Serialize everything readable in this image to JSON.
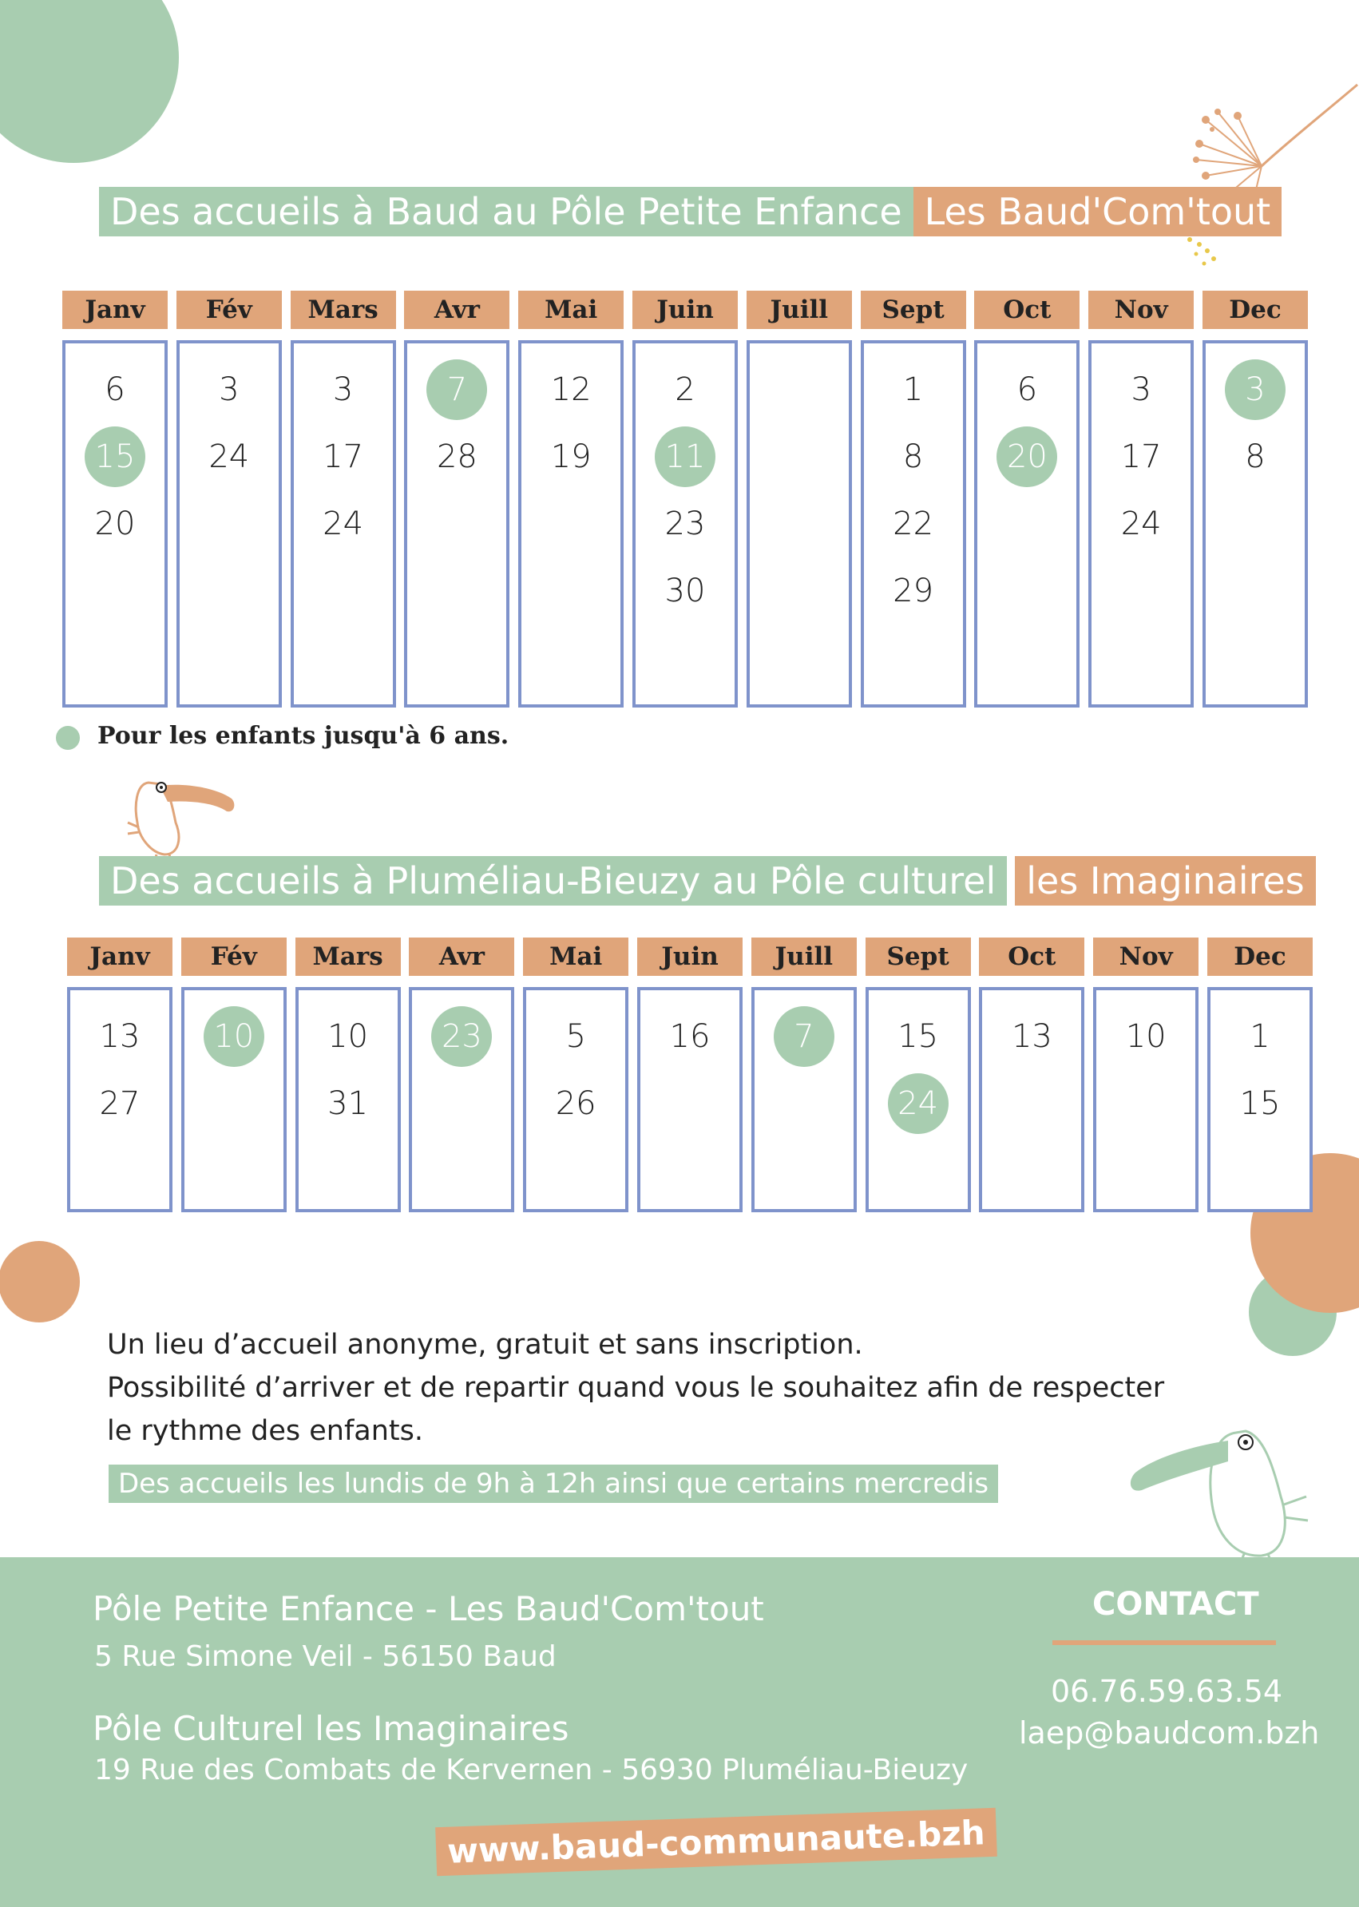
{
  "section1": {
    "title_main": "Des accueils à Baud au Pôle Petite Enfance",
    "title_accent": "Les Baud'Com'tout"
  },
  "section2": {
    "title_main": "Des accueils à Pluméliau-Bieuzy au Pôle culturel",
    "title_accent": "les Imaginaires"
  },
  "calendar1": [
    {
      "month": "Janv",
      "days": [
        {
          "d": "6"
        },
        {
          "d": "15",
          "hl": true
        },
        {
          "d": "20"
        }
      ]
    },
    {
      "month": "Fév",
      "days": [
        {
          "d": "3"
        },
        {
          "d": "24"
        }
      ]
    },
    {
      "month": "Mars",
      "days": [
        {
          "d": "3"
        },
        {
          "d": "17"
        },
        {
          "d": "24"
        }
      ]
    },
    {
      "month": "Avr",
      "days": [
        {
          "d": "7",
          "hl": true
        },
        {
          "d": "28"
        }
      ]
    },
    {
      "month": "Mai",
      "days": [
        {
          "d": "12"
        },
        {
          "d": "19"
        }
      ]
    },
    {
      "month": "Juin",
      "days": [
        {
          "d": "2"
        },
        {
          "d": "11",
          "hl": true
        },
        {
          "d": "23"
        },
        {
          "d": "30"
        }
      ]
    },
    {
      "month": "Juill",
      "days": []
    },
    {
      "month": "Sept",
      "days": [
        {
          "d": "1"
        },
        {
          "d": "8"
        },
        {
          "d": "22"
        },
        {
          "d": "29"
        }
      ]
    },
    {
      "month": "Oct",
      "days": [
        {
          "d": "6"
        },
        {
          "d": "20",
          "hl": true
        }
      ]
    },
    {
      "month": "Nov",
      "days": [
        {
          "d": "3"
        },
        {
          "d": "17"
        },
        {
          "d": "24"
        }
      ]
    },
    {
      "month": "Dec",
      "days": [
        {
          "d": "3",
          "hl": true
        },
        {
          "d": "8"
        }
      ]
    }
  ],
  "calendar2": [
    {
      "month": "Janv",
      "days": [
        {
          "d": "13"
        },
        {
          "d": "27"
        }
      ]
    },
    {
      "month": "Fév",
      "days": [
        {
          "d": "10",
          "hl": true
        }
      ]
    },
    {
      "month": "Mars",
      "days": [
        {
          "d": "10"
        },
        {
          "d": "31"
        }
      ]
    },
    {
      "month": "Avr",
      "days": [
        {
          "d": "23",
          "hl": true
        }
      ]
    },
    {
      "month": "Mai",
      "days": [
        {
          "d": "5"
        },
        {
          "d": "26"
        }
      ]
    },
    {
      "month": "Juin",
      "days": [
        {
          "d": "16"
        }
      ]
    },
    {
      "month": "Juill",
      "days": [
        {
          "d": "7",
          "hl": true
        }
      ]
    },
    {
      "month": "Sept",
      "days": [
        {
          "d": "15"
        },
        {
          "d": "24",
          "hl": true
        }
      ]
    },
    {
      "month": "Oct",
      "days": [
        {
          "d": "13"
        }
      ]
    },
    {
      "month": "Nov",
      "days": [
        {
          "d": "10"
        }
      ]
    },
    {
      "month": "Dec",
      "days": [
        {
          "d": "1"
        },
        {
          "d": "15"
        }
      ]
    }
  ],
  "legend": {
    "text": "Pour les enfants jusqu'à 6 ans."
  },
  "info": {
    "line1": "Un lieu d’accueil anonyme, gratuit et sans inscription.",
    "line2": "Possibilité d’arriver et de repartir quand vous le souhaitez afin de respecter",
    "line3": "le rythme des enfants.",
    "highlight": "Des accueils les lundis de 9h à 12h ainsi que certains mercredis"
  },
  "footer": {
    "place1_name": "Pôle Petite Enfance - Les Baud'Com'tout",
    "place1_address": "5 Rue Simone Veil - 56150 Baud",
    "place2_name": "Pôle Culturel les Imaginaires",
    "place2_address": "19 Rue des Combats de Kervernen - 56930 Pluméliau-Bieuzy",
    "contact_title": "CONTACT",
    "phone": "06.76.59.63.54",
    "email": "laep@baudcom.bzh",
    "website": "www.baud-communaute.bzh"
  },
  "colors": {
    "green": "#a8cdb0",
    "orange": "#e0a57a",
    "box_border": "#7f93cb"
  },
  "icons": [
    "toucan-illustration",
    "dried-flower-illustration"
  ]
}
